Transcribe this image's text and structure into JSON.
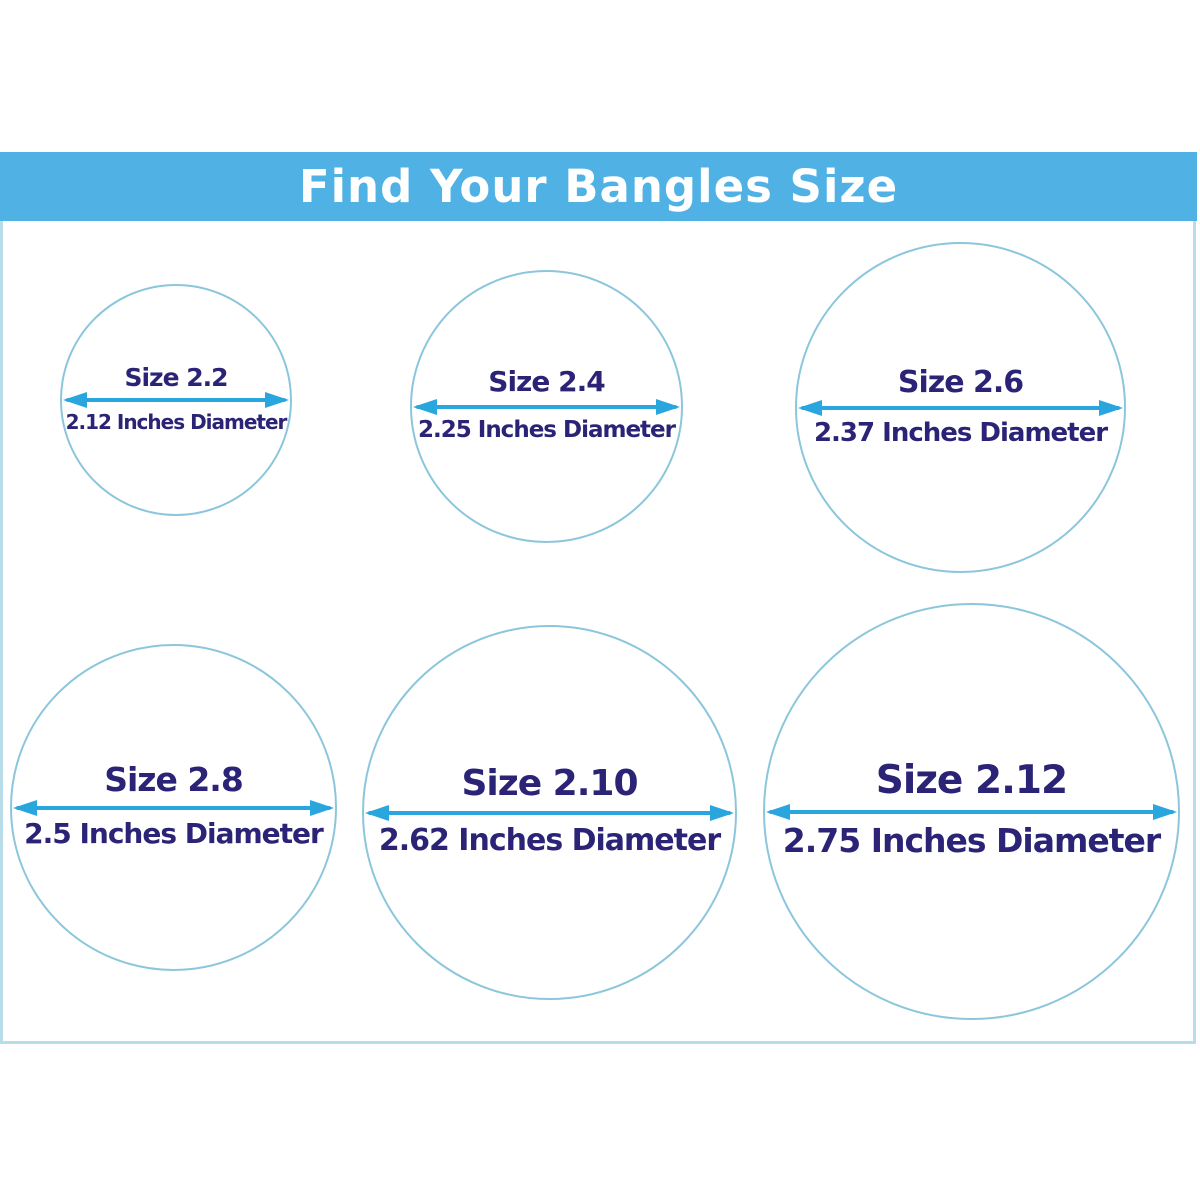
{
  "title": "Find Your Bangles Size",
  "colors": {
    "title_bar_bg": "#4FB1E4",
    "title_text": "#FFFFFF",
    "frame_border": "#B9DCEA",
    "circle_stroke": "#8CC6DD",
    "arrow": "#2AA6DE",
    "label_text": "#2B2376",
    "background": "#FFFFFF"
  },
  "circles": [
    {
      "size_label": "Size 2.2",
      "diameter_label": "2.12 Inches Diameter",
      "size_value": "2.2",
      "diameter_inches": 2.12
    },
    {
      "size_label": "Size 2.4",
      "diameter_label": "2.25 Inches Diameter",
      "size_value": "2.4",
      "diameter_inches": 2.25
    },
    {
      "size_label": "Size 2.6",
      "diameter_label": "2.37 Inches Diameter",
      "size_value": "2.6",
      "diameter_inches": 2.37
    },
    {
      "size_label": "Size 2.8",
      "diameter_label": "2.5 Inches Diameter",
      "size_value": "2.8",
      "diameter_inches": 2.5
    },
    {
      "size_label": "Size 2.10",
      "diameter_label": "2.62 Inches Diameter",
      "size_value": "2.10",
      "diameter_inches": 2.62
    },
    {
      "size_label": "Size 2.12",
      "diameter_label": "2.75 Inches Diameter",
      "size_value": "2.12",
      "diameter_inches": 2.75
    }
  ]
}
